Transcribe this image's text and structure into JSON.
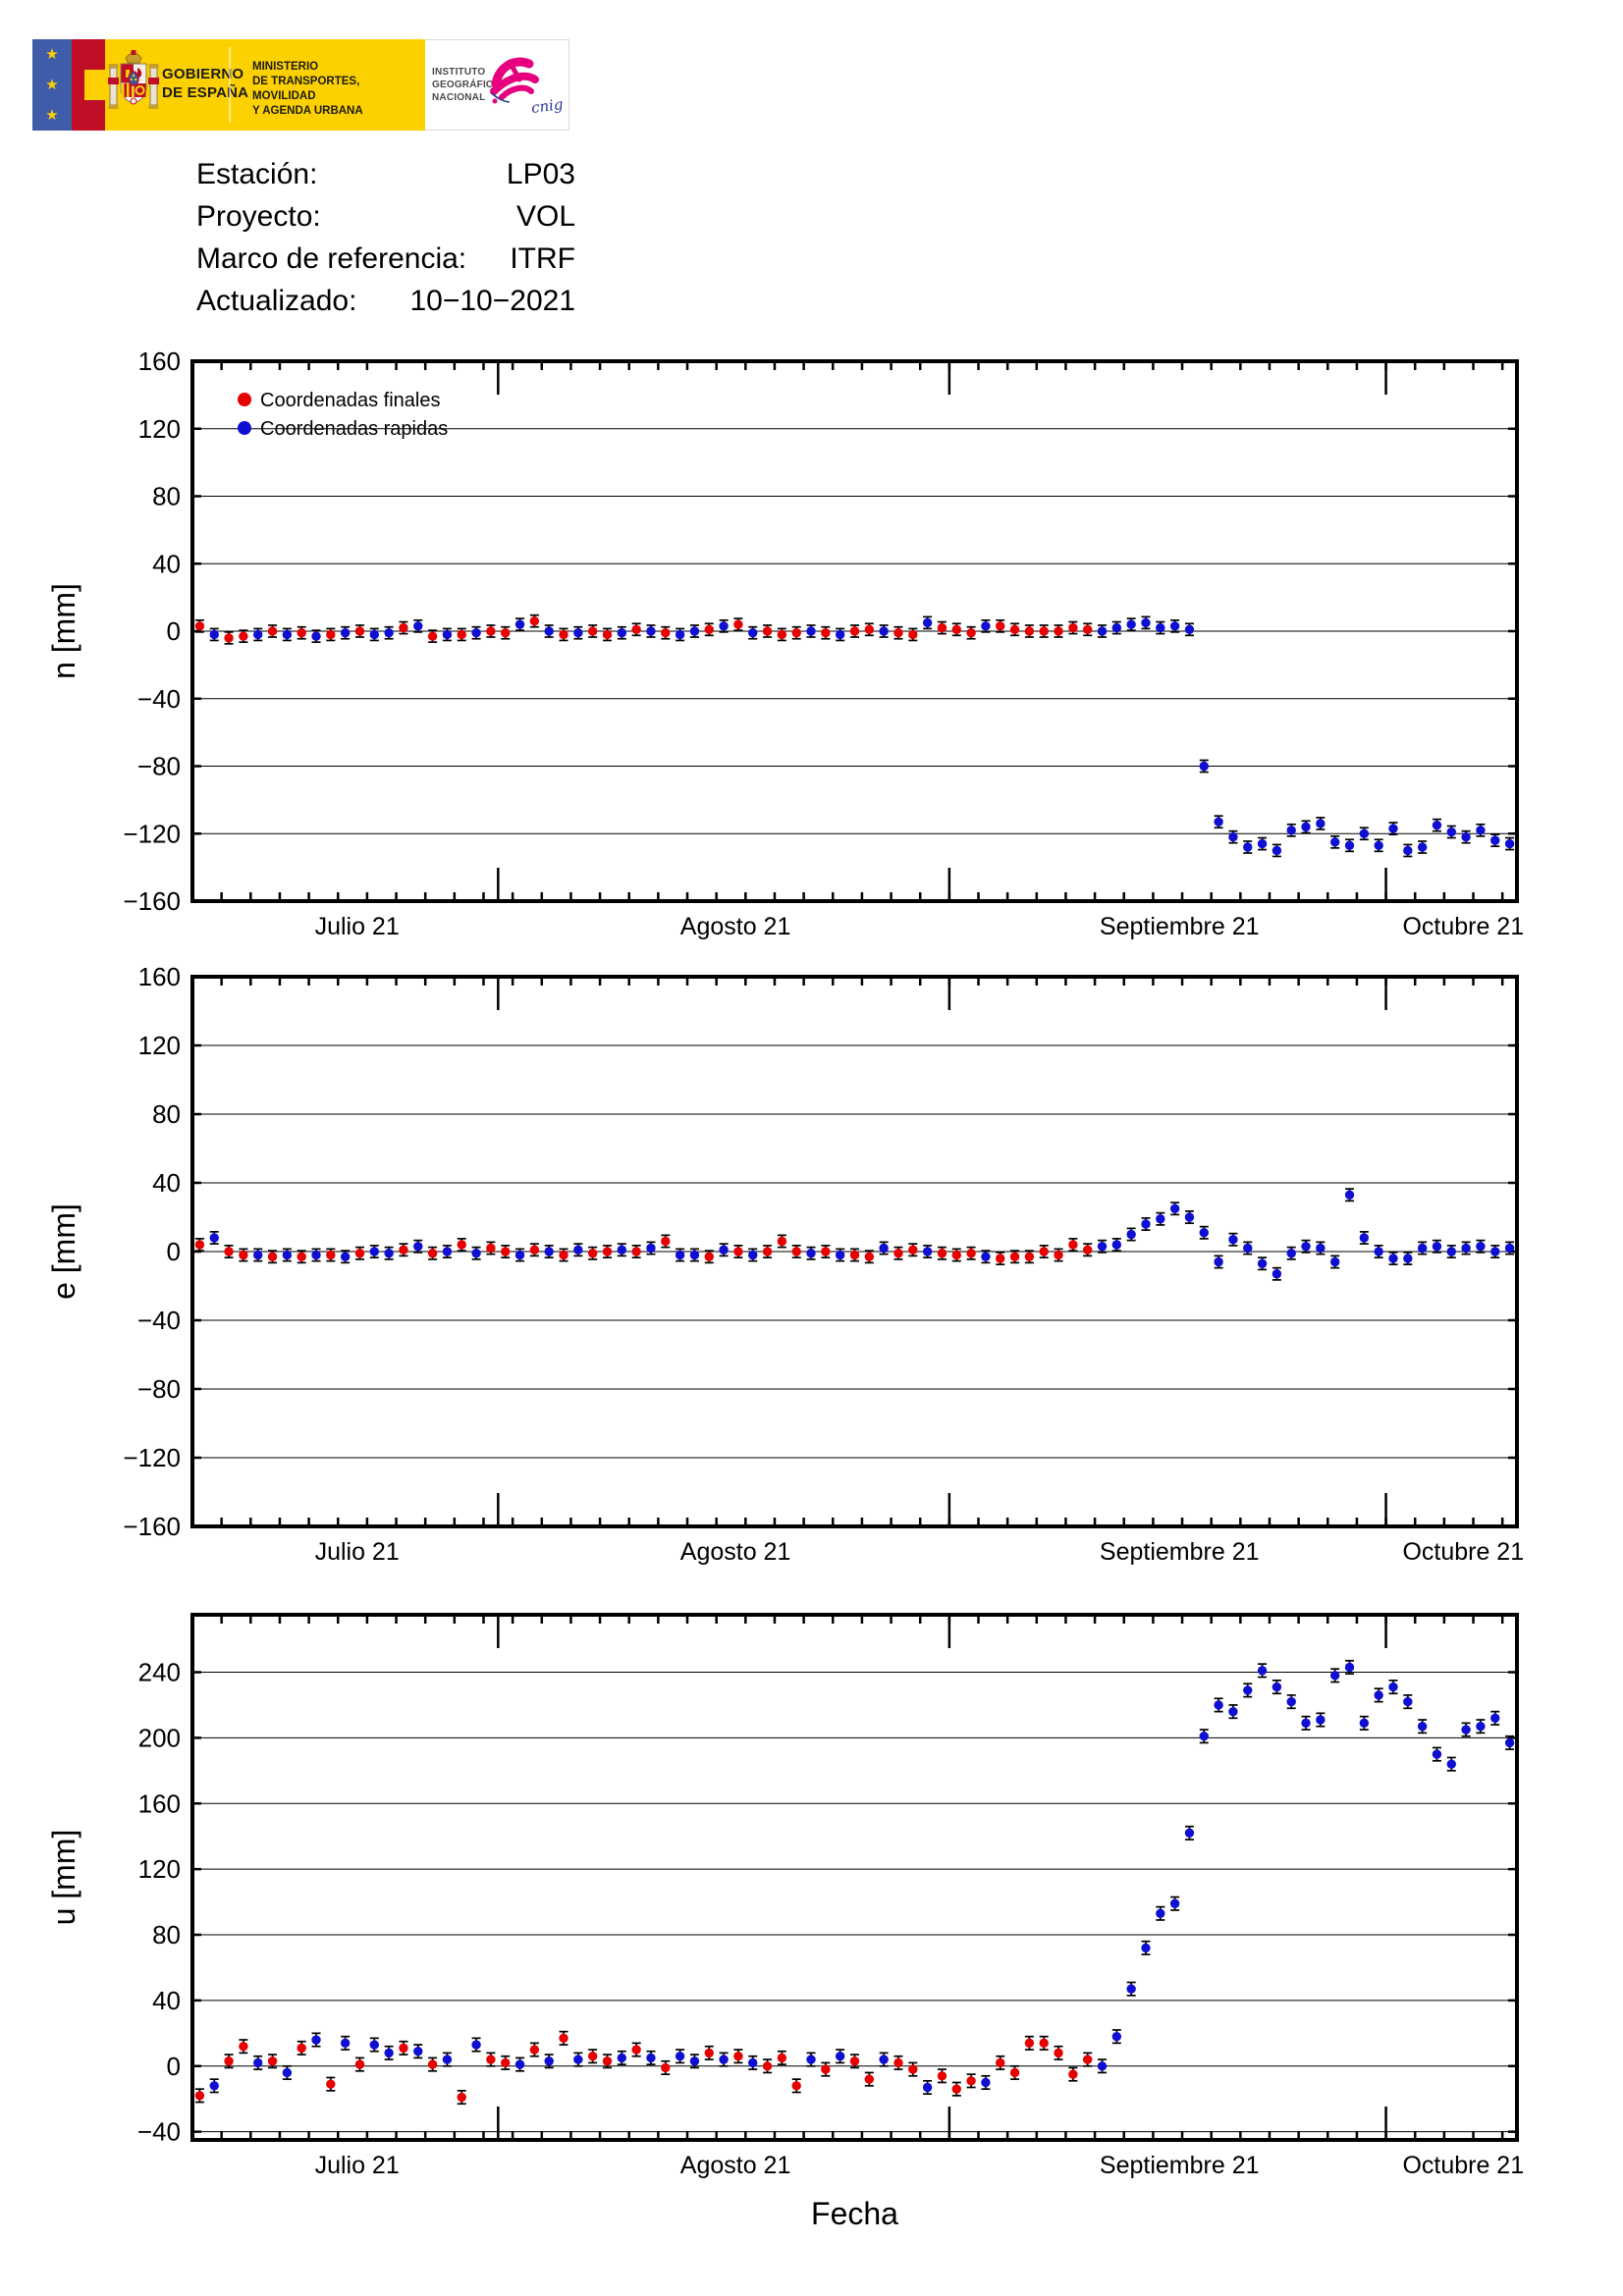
{
  "header": {
    "logo": {
      "star": "★",
      "gobierno_line1": "GOBIERNO",
      "gobierno_line2": "DE ESPAÑA",
      "ministerio_line1": "MINISTERIO",
      "ministerio_line2": "DE TRANSPORTES, MOVILIDAD",
      "ministerio_line3": "Y AGENDA URBANA",
      "ign_line1": "INSTITUTO",
      "ign_line2": "GEOGRÁFICO",
      "ign_line3": "NACIONAL",
      "cnig_label": "cnig",
      "colors": {
        "yellow": "#fdd000",
        "eu_blue": "#3f5ca9",
        "red": "#c00e27",
        "magenta": "#e6007e",
        "cnig_blue": "#2b3990"
      }
    },
    "info": [
      {
        "label": "Estación:",
        "value": "LP03"
      },
      {
        "label": "Proyecto:",
        "value": "VOL"
      },
      {
        "label": "Marco de referencia:",
        "value": "ITRF"
      },
      {
        "label": "Actualizado:",
        "value": "10−10−2021"
      }
    ]
  },
  "legend": [
    {
      "label": "Coordenadas finales",
      "color": "#e60000"
    },
    {
      "label": "Coordenadas rapidas",
      "color": "#0f0fd2"
    }
  ],
  "chart_data": {
    "type": "scatter",
    "title": "",
    "xlabel": "Fecha",
    "n_days": 91,
    "month_boundaries_day": [
      21,
      52,
      82
    ],
    "month_labels": [
      "Julio 21",
      "Agosto 21",
      "Septiembre 21",
      "Octubre 21"
    ],
    "point_day_colors": "frffrfrfrfrfrrfrfrfrffrfrfrffrfrfrrfrfrfffrfrffrffrfffrfffffffrrrrrrrrrrrrrrrrrrrrrrrrrrrrr",
    "series_colors": {
      "finales": "#e60000",
      "rapidas": "#0f0fd2"
    },
    "error_mm": {
      "n": 3.5,
      "e": 3.5,
      "u": 4
    },
    "grid": true,
    "legend_position": "top-left of first panel",
    "charts": [
      {
        "id": "n",
        "ylabel": "n [mm]",
        "ylim": [
          -160,
          160
        ],
        "ytick_step": 40,
        "values": [
          3,
          -2,
          -4,
          -3,
          -2,
          0,
          -2,
          -1,
          -3,
          -2,
          -1,
          0,
          -2,
          -1,
          2,
          3,
          -3,
          -2,
          -2,
          -1,
          0,
          -1,
          4,
          6,
          0,
          -2,
          -1,
          0,
          -2,
          -1,
          1,
          0,
          -1,
          -2,
          0,
          1,
          3,
          4,
          -1,
          0,
          -2,
          -1,
          0,
          -1,
          -2,
          0,
          1,
          0,
          -1,
          -2,
          5,
          2,
          1,
          -1,
          3,
          3,
          1,
          0,
          0,
          0,
          2,
          1,
          0,
          2,
          4,
          5,
          2,
          3,
          1,
          -80,
          -113,
          -122,
          -128,
          -126,
          -130,
          -118,
          -116,
          -114,
          -125,
          -127,
          -120,
          -127,
          -117,
          -130,
          -128,
          -115,
          -119,
          -122,
          -118,
          -124,
          -126
        ]
      },
      {
        "id": "e",
        "ylabel": "e [mm]",
        "ylim": [
          -160,
          160
        ],
        "ytick_step": 40,
        "values": [
          4,
          8,
          0,
          -2,
          -2,
          -3,
          -2,
          -3,
          -2,
          -2,
          -3,
          -1,
          0,
          -1,
          1,
          3,
          -1,
          0,
          4,
          -1,
          2,
          0,
          -2,
          1,
          0,
          -2,
          1,
          -1,
          0,
          1,
          0,
          2,
          6,
          -2,
          -2,
          -3,
          1,
          0,
          -2,
          0,
          6,
          0,
          -1,
          0,
          -2,
          -2,
          -3,
          2,
          -1,
          1,
          0,
          -1,
          -2,
          -1,
          -3,
          -4,
          -3,
          -3,
          0,
          -2,
          4,
          1,
          3,
          4,
          10,
          16,
          19,
          25,
          20,
          11,
          -6,
          7,
          2,
          -7,
          -13,
          -1,
          3,
          2,
          -6,
          33,
          8,
          0,
          -4,
          -4,
          2,
          3,
          0,
          2,
          3,
          0,
          2
        ]
      },
      {
        "id": "u",
        "ylabel": "u [mm]",
        "ylim": [
          -45,
          275
        ],
        "ytick_step": 40,
        "values": [
          -18,
          -12,
          3,
          12,
          2,
          3,
          -4,
          11,
          16,
          -11,
          14,
          1,
          13,
          8,
          11,
          9,
          1,
          4,
          -19,
          13,
          4,
          2,
          1,
          10,
          3,
          17,
          4,
          6,
          3,
          5,
          10,
          5,
          -1,
          6,
          3,
          8,
          4,
          6,
          2,
          0,
          5,
          -12,
          4,
          -2,
          6,
          3,
          -8,
          4,
          2,
          -2,
          -13,
          -6,
          -14,
          -9,
          -10,
          2,
          -4,
          14,
          14,
          8,
          -5,
          4,
          0,
          18,
          47,
          72,
          93,
          99,
          142,
          201,
          220,
          216,
          229,
          241,
          231,
          222,
          209,
          211,
          238,
          243,
          209,
          226,
          231,
          222,
          207,
          190,
          184,
          205,
          207,
          212,
          197
        ]
      }
    ]
  }
}
